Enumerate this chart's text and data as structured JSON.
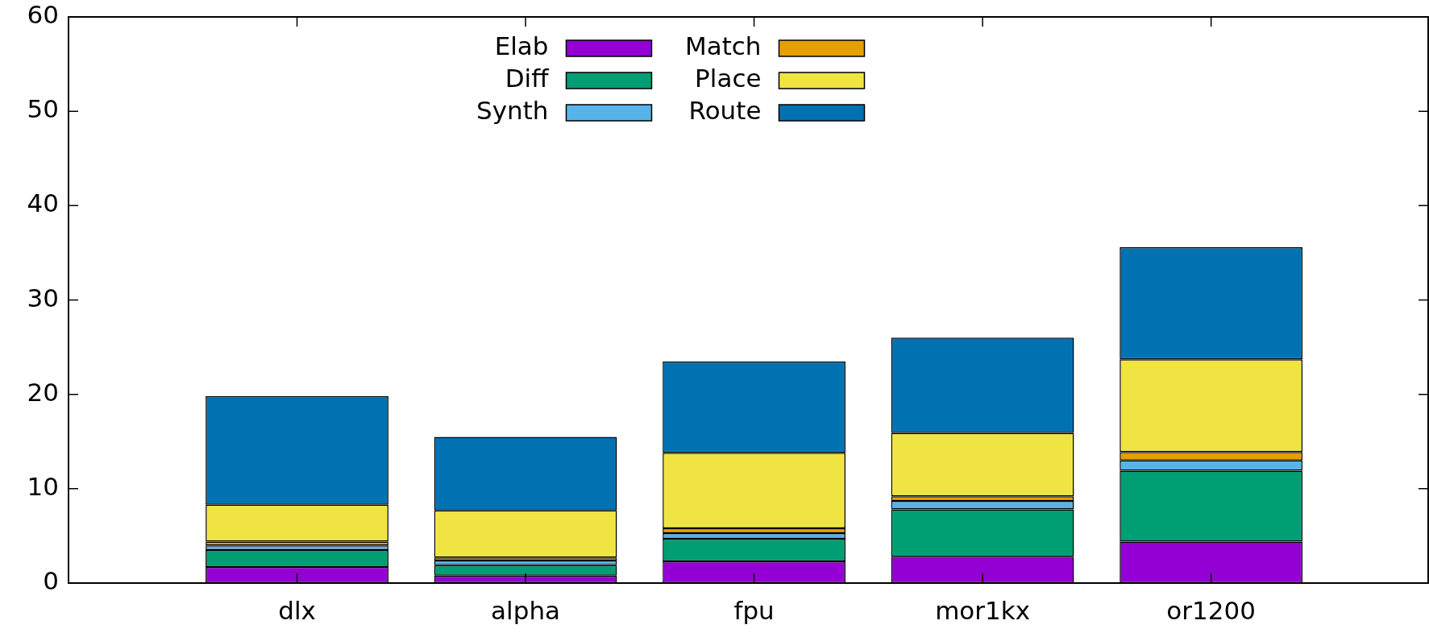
{
  "chart_data": {
    "type": "bar",
    "stacked": true,
    "categories": [
      "dlx",
      "alpha",
      "fpu",
      "mor1kx",
      "or1200"
    ],
    "series": [
      {
        "name": "Elab",
        "color": "#9400d3",
        "values": [
          1.7,
          0.8,
          2.3,
          2.8,
          4.4
        ]
      },
      {
        "name": "Diff",
        "color": "#009e73",
        "values": [
          1.8,
          1.1,
          2.4,
          5.0,
          7.5
        ]
      },
      {
        "name": "Synth",
        "color": "#56b4e9",
        "values": [
          0.5,
          0.5,
          0.6,
          0.9,
          1.1
        ]
      },
      {
        "name": "Match",
        "color": "#e69f00",
        "values": [
          0.4,
          0.3,
          0.5,
          0.5,
          0.9
        ]
      },
      {
        "name": "Place",
        "color": "#f0e442",
        "values": [
          3.9,
          5.0,
          8.0,
          6.7,
          9.8
        ]
      },
      {
        "name": "Route",
        "color": "#0072b2",
        "values": [
          11.5,
          7.8,
          9.7,
          10.1,
          11.9
        ]
      }
    ],
    "ylim": [
      0,
      60
    ],
    "yticks": [
      0,
      10,
      20,
      30,
      40,
      50,
      60
    ],
    "legend": "top"
  }
}
